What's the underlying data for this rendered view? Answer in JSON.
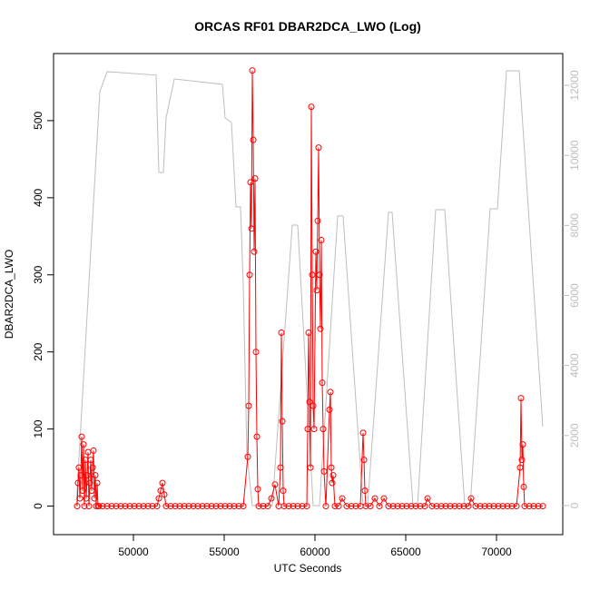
{
  "chart_data": {
    "type": "line",
    "title": "ORCAS RF01 DBAR2DCA_LWO (Log)",
    "x_label": "UTC Seconds",
    "y_label": "DBAR2DCA_LWO",
    "xlim": [
      45600,
      73650
    ],
    "ylim": [
      -37,
      587
    ],
    "y2lim": [
      -829,
      12907
    ],
    "xticks": [
      50000,
      55000,
      60000,
      65000,
      70000
    ],
    "yticks": [
      0,
      100,
      200,
      300,
      400,
      500
    ],
    "y2ticks": [
      0,
      2000,
      4000,
      6000,
      8000,
      10000,
      12000
    ],
    "y2_color": "#bebebe",
    "series": [
      {
        "color": "#bebebe",
        "axis": "y2",
        "markers": false,
        "x": [
          46850,
          48150,
          48550,
          49400,
          51250,
          51400,
          51650,
          51800,
          52250,
          54900,
          55050,
          55400,
          55650,
          55900,
          56050,
          56250,
          56550,
          57650,
          58750,
          59050,
          59900,
          60250,
          61250,
          61550,
          62650,
          62900,
          64050,
          64250,
          65400,
          65650,
          66650,
          67150,
          68250,
          68550,
          69650,
          70050,
          70550,
          71250,
          72550
        ],
        "values": [
          0,
          11820,
          12390,
          12360,
          12290,
          9513,
          9513,
          11070,
          12180,
          12030,
          11070,
          10940,
          8530,
          8530,
          6270,
          1480,
          0,
          0,
          8010,
          8010,
          0,
          0,
          8270,
          8270,
          0,
          0,
          8370,
          8370,
          0,
          0,
          8450,
          8450,
          0,
          0,
          8475,
          8475,
          12415,
          12415,
          2255
        ]
      },
      {
        "color": "#ff0000",
        "axis": "y",
        "markers": true,
        "x": [
          46900,
          46950,
          47000,
          47050,
          47100,
          47150,
          47200,
          47250,
          47300,
          47350,
          47400,
          47450,
          47500,
          47550,
          47600,
          47650,
          47700,
          47750,
          47800,
          47850,
          47900,
          47950,
          48000,
          48050,
          48100,
          48300,
          48550,
          48800,
          49050,
          49300,
          49550,
          49800,
          50050,
          50300,
          50550,
          50800,
          51050,
          51300,
          51400,
          51500,
          51600,
          51700,
          51800,
          52050,
          52300,
          52550,
          52800,
          53050,
          53300,
          53550,
          53800,
          54050,
          54300,
          54550,
          54800,
          55050,
          55300,
          55550,
          55800,
          56050,
          56300,
          56350,
          56400,
          56450,
          56500,
          56550,
          56600,
          56650,
          56700,
          56750,
          56800,
          56850,
          56900,
          57150,
          57400,
          57600,
          57800,
          58000,
          58100,
          58150,
          58200,
          58250,
          58300,
          58550,
          58800,
          59050,
          59300,
          59550,
          59600,
          59650,
          59700,
          59750,
          59800,
          59850,
          59900,
          59950,
          60050,
          60100,
          60150,
          60200,
          60250,
          60300,
          60350,
          60400,
          60450,
          60500,
          60600,
          60800,
          60850,
          60900,
          60950,
          61000,
          61100,
          61300,
          61500,
          61750,
          62000,
          62250,
          62500,
          62650,
          62700,
          62750,
          62800,
          63050,
          63300,
          63550,
          63800,
          64050,
          64300,
          64550,
          64800,
          65050,
          65300,
          65550,
          65800,
          66050,
          66200,
          66450,
          66700,
          66950,
          67200,
          67450,
          67700,
          67950,
          68200,
          68450,
          68600,
          68850,
          69100,
          69350,
          69600,
          69850,
          70100,
          70350,
          70600,
          70850,
          71100,
          71300,
          71350,
          71400,
          71450,
          71500,
          71550,
          71800,
          72050,
          72300,
          72550
        ],
        "values": [
          0,
          30,
          50,
          10,
          40,
          90,
          20,
          80,
          0,
          60,
          10,
          40,
          70,
          0,
          30,
          60,
          20,
          50,
          72,
          10,
          40,
          0,
          30,
          0,
          0,
          0,
          0,
          0,
          0,
          0,
          0,
          0,
          0,
          0,
          0,
          0,
          0,
          0,
          10,
          20,
          30,
          15,
          0,
          0,
          0,
          0,
          0,
          0,
          0,
          0,
          0,
          0,
          0,
          0,
          0,
          0,
          0,
          0,
          0,
          0,
          64,
          130,
          300,
          420,
          360,
          565,
          475,
          330,
          425,
          200,
          90,
          22,
          0,
          0,
          0,
          10,
          28,
          0,
          50,
          225,
          110,
          20,
          0,
          0,
          0,
          0,
          0,
          0,
          100,
          225,
          135,
          50,
          518,
          300,
          130,
          100,
          330,
          280,
          370,
          465,
          300,
          230,
          345,
          160,
          100,
          45,
          0,
          125,
          148,
          50,
          30,
          40,
          0,
          0,
          10,
          0,
          0,
          0,
          0,
          95,
          60,
          20,
          0,
          0,
          10,
          0,
          10,
          0,
          0,
          0,
          0,
          0,
          0,
          0,
          0,
          0,
          10,
          0,
          0,
          0,
          0,
          0,
          0,
          0,
          0,
          0,
          10,
          0,
          0,
          0,
          0,
          0,
          0,
          0,
          0,
          0,
          0,
          50,
          140,
          60,
          80,
          25,
          0,
          0,
          0,
          0,
          0
        ]
      }
    ]
  }
}
